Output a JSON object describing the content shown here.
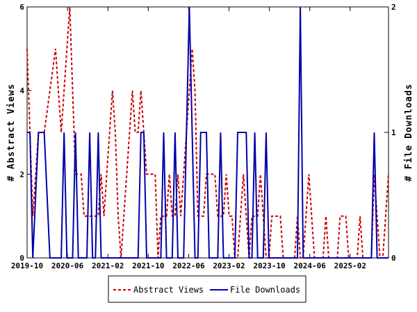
{
  "chart_data": {
    "type": "line",
    "title": "",
    "xlabel": "",
    "ylabel_left": "# Abstract Views",
    "ylabel_right": "# File Downloads",
    "x_ticks": [
      "2019-10",
      "2020-06",
      "2021-02",
      "2021-10",
      "2022-06",
      "2023-02",
      "2023-10",
      "2024-06",
      "2025-02"
    ],
    "y_ticks_left": [
      "0",
      "2",
      "4",
      "6"
    ],
    "y_ticks_right": [
      "0",
      "1",
      "2"
    ],
    "ylim_left": [
      0,
      6
    ],
    "ylim_right": [
      0,
      2
    ],
    "grid": false,
    "legend_position": "bottom",
    "series": [
      {
        "name": "Abstract Views",
        "axis": "left",
        "color": "#cc0000",
        "style": "dashed",
        "points": [
          [
            0,
            5
          ],
          [
            2,
            1
          ],
          [
            4,
            3
          ],
          [
            6,
            3
          ],
          [
            8,
            4
          ],
          [
            10,
            5
          ],
          [
            12,
            3
          ],
          [
            13,
            4
          ],
          [
            14,
            5
          ],
          [
            15,
            6
          ],
          [
            16,
            4
          ],
          [
            17,
            2
          ],
          [
            18,
            2
          ],
          [
            19,
            2
          ],
          [
            20,
            1
          ],
          [
            21,
            1
          ],
          [
            22,
            1
          ],
          [
            23,
            1
          ],
          [
            24,
            1
          ],
          [
            25,
            1
          ],
          [
            26,
            2
          ],
          [
            27,
            1
          ],
          [
            28,
            2
          ],
          [
            29,
            3
          ],
          [
            30,
            4
          ],
          [
            31,
            3
          ],
          [
            32,
            1
          ],
          [
            33,
            0
          ],
          [
            34,
            1
          ],
          [
            35,
            2
          ],
          [
            36,
            3
          ],
          [
            37,
            4
          ],
          [
            38,
            3
          ],
          [
            39,
            3
          ],
          [
            40,
            4
          ],
          [
            41,
            3
          ],
          [
            42,
            2
          ],
          [
            43,
            2
          ],
          [
            44,
            2
          ],
          [
            45,
            2
          ],
          [
            46,
            0
          ],
          [
            47,
            1
          ],
          [
            48,
            1
          ],
          [
            49,
            1
          ],
          [
            50,
            2
          ],
          [
            51,
            1
          ],
          [
            52,
            1
          ],
          [
            53,
            2
          ],
          [
            54,
            1
          ],
          [
            55,
            2
          ],
          [
            56,
            3
          ],
          [
            57,
            4
          ],
          [
            58,
            5
          ],
          [
            59,
            4
          ],
          [
            60,
            1
          ],
          [
            61,
            1
          ],
          [
            62,
            1
          ],
          [
            63,
            2
          ],
          [
            64,
            2
          ],
          [
            65,
            2
          ],
          [
            66,
            2
          ],
          [
            67,
            1
          ],
          [
            68,
            1
          ],
          [
            69,
            1
          ],
          [
            70,
            2
          ],
          [
            71,
            1
          ],
          [
            72,
            1
          ],
          [
            73,
            0
          ],
          [
            74,
            0
          ],
          [
            75,
            1
          ],
          [
            76,
            2
          ],
          [
            77,
            1
          ],
          [
            78,
            0
          ],
          [
            79,
            1
          ],
          [
            80,
            1
          ],
          [
            81,
            1
          ],
          [
            82,
            2
          ],
          [
            83,
            1
          ],
          [
            84,
            0
          ],
          [
            85,
            0
          ],
          [
            86,
            1
          ],
          [
            87,
            1
          ],
          [
            88,
            1
          ],
          [
            89,
            1
          ],
          [
            90,
            0
          ],
          [
            91,
            0
          ],
          [
            92,
            0
          ],
          [
            93,
            0
          ],
          [
            94,
            0
          ],
          [
            95,
            1
          ],
          [
            96,
            0
          ],
          [
            97,
            0
          ],
          [
            98,
            1
          ],
          [
            99,
            2
          ],
          [
            100,
            1
          ],
          [
            101,
            0
          ],
          [
            102,
            0
          ],
          [
            103,
            0
          ],
          [
            104,
            0
          ],
          [
            105,
            1
          ],
          [
            106,
            0
          ],
          [
            107,
            0
          ],
          [
            108,
            0
          ],
          [
            109,
            0
          ],
          [
            110,
            1
          ],
          [
            111,
            1
          ],
          [
            112,
            1
          ],
          [
            113,
            0
          ],
          [
            114,
            0
          ],
          [
            115,
            0
          ],
          [
            116,
            0
          ],
          [
            117,
            1
          ],
          [
            118,
            0
          ],
          [
            119,
            0
          ],
          [
            120,
            0
          ],
          [
            121,
            0
          ],
          [
            122,
            2
          ],
          [
            123,
            1
          ],
          [
            124,
            0
          ],
          [
            125,
            0
          ],
          [
            126,
            1
          ],
          [
            127,
            2
          ]
        ]
      },
      {
        "name": "File Downloads",
        "axis": "right",
        "color": "#0000aa",
        "style": "solid",
        "points": [
          [
            0,
            1
          ],
          [
            1,
            1
          ],
          [
            2,
            0
          ],
          [
            4,
            1
          ],
          [
            6,
            1
          ],
          [
            8,
            0
          ],
          [
            10,
            0
          ],
          [
            11,
            0
          ],
          [
            12,
            0
          ],
          [
            13,
            1
          ],
          [
            14,
            0
          ],
          [
            15,
            0
          ],
          [
            16,
            0
          ],
          [
            17,
            1
          ],
          [
            18,
            0
          ],
          [
            19,
            0
          ],
          [
            20,
            0
          ],
          [
            21,
            0
          ],
          [
            22,
            1
          ],
          [
            23,
            0
          ],
          [
            24,
            0
          ],
          [
            25,
            1
          ],
          [
            26,
            0
          ],
          [
            27,
            0
          ],
          [
            28,
            0
          ],
          [
            29,
            0
          ],
          [
            30,
            0
          ],
          [
            31,
            0
          ],
          [
            32,
            0
          ],
          [
            33,
            0
          ],
          [
            34,
            0
          ],
          [
            35,
            0
          ],
          [
            36,
            0
          ],
          [
            37,
            0
          ],
          [
            38,
            0
          ],
          [
            39,
            0
          ],
          [
            40,
            1
          ],
          [
            41,
            1
          ],
          [
            42,
            0
          ],
          [
            43,
            0
          ],
          [
            44,
            0
          ],
          [
            45,
            0
          ],
          [
            46,
            0
          ],
          [
            47,
            0
          ],
          [
            48,
            1
          ],
          [
            49,
            0
          ],
          [
            50,
            0
          ],
          [
            51,
            0
          ],
          [
            52,
            1
          ],
          [
            53,
            0
          ],
          [
            54,
            0
          ],
          [
            55,
            0
          ],
          [
            56,
            1
          ],
          [
            57,
            2
          ],
          [
            58,
            1
          ],
          [
            59,
            0
          ],
          [
            60,
            0
          ],
          [
            61,
            1
          ],
          [
            62,
            1
          ],
          [
            63,
            1
          ],
          [
            64,
            0
          ],
          [
            65,
            0
          ],
          [
            66,
            0
          ],
          [
            67,
            0
          ],
          [
            68,
            1
          ],
          [
            69,
            0
          ],
          [
            70,
            0
          ],
          [
            71,
            0
          ],
          [
            72,
            0
          ],
          [
            73,
            0
          ],
          [
            74,
            1
          ],
          [
            75,
            1
          ],
          [
            76,
            1
          ],
          [
            77,
            1
          ],
          [
            78,
            0
          ],
          [
            79,
            0
          ],
          [
            80,
            1
          ],
          [
            81,
            0
          ],
          [
            82,
            0
          ],
          [
            83,
            0
          ],
          [
            84,
            1
          ],
          [
            85,
            0
          ],
          [
            86,
            0
          ],
          [
            87,
            0
          ],
          [
            88,
            0
          ],
          [
            89,
            0
          ],
          [
            90,
            0
          ],
          [
            91,
            0
          ],
          [
            92,
            0
          ],
          [
            93,
            0
          ],
          [
            94,
            0
          ],
          [
            95,
            0
          ],
          [
            96,
            2
          ],
          [
            97,
            0
          ],
          [
            98,
            0
          ],
          [
            99,
            0
          ],
          [
            100,
            0
          ],
          [
            101,
            0
          ],
          [
            102,
            0
          ],
          [
            103,
            0
          ],
          [
            104,
            0
          ],
          [
            105,
            0
          ],
          [
            106,
            0
          ],
          [
            107,
            0
          ],
          [
            108,
            0
          ],
          [
            109,
            0
          ],
          [
            110,
            0
          ],
          [
            111,
            0
          ],
          [
            112,
            0
          ],
          [
            113,
            0
          ],
          [
            114,
            0
          ],
          [
            115,
            0
          ],
          [
            116,
            0
          ],
          [
            117,
            0
          ],
          [
            118,
            0
          ],
          [
            119,
            0
          ],
          [
            120,
            0
          ],
          [
            121,
            0
          ],
          [
            122,
            1
          ],
          [
            123,
            0
          ],
          [
            124,
            0
          ],
          [
            125,
            0
          ],
          [
            126,
            0
          ],
          [
            127,
            0
          ]
        ]
      }
    ],
    "legend": [
      {
        "label": "Abstract Views",
        "color": "#cc0000",
        "style": "dashed"
      },
      {
        "label": "File Downloads",
        "color": "#0000aa",
        "style": "solid"
      }
    ]
  }
}
